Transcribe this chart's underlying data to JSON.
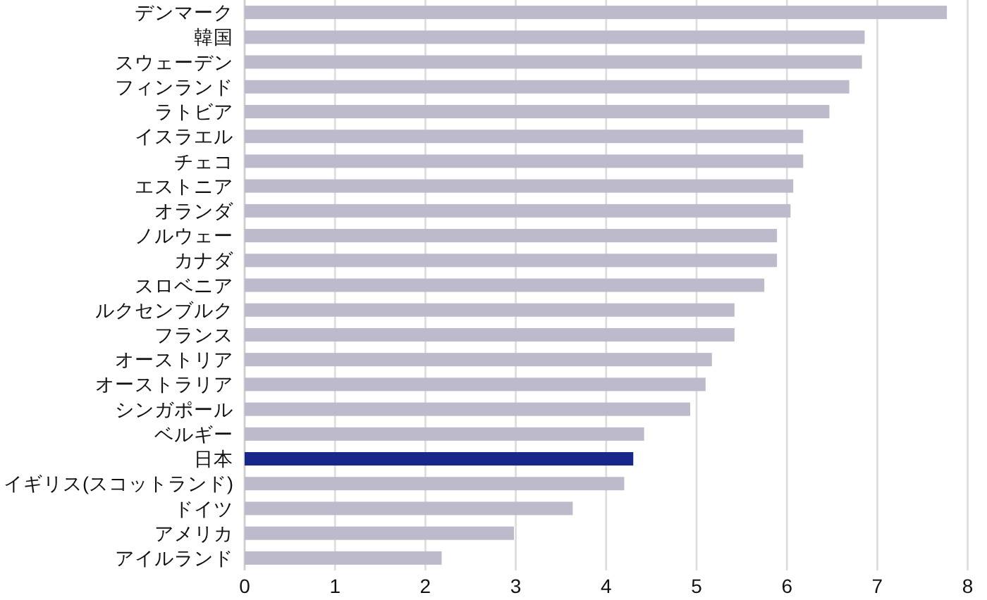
{
  "chart_data": {
    "type": "bar",
    "orientation": "horizontal",
    "categories": [
      "デンマーク",
      "韓国",
      "スウェーデン",
      "フィンランド",
      "ラトビア",
      "イスラエル",
      "チェコ",
      "エストニア",
      "オランダ",
      "ノルウェー",
      "カナダ",
      "スロベニア",
      "ルクセンブルク",
      "フランス",
      "オーストリア",
      "オーストラリア",
      "シンガポール",
      "ベルギー",
      "日本",
      "イギリス(スコットランド)",
      "ドイツ",
      "アメリカ",
      "アイルランド"
    ],
    "values": [
      7.77,
      6.86,
      6.83,
      6.69,
      6.47,
      6.18,
      6.18,
      6.07,
      6.04,
      5.89,
      5.89,
      5.75,
      5.42,
      5.42,
      5.17,
      5.1,
      4.93,
      4.42,
      4.3,
      4.2,
      3.63,
      2.98,
      2.18
    ],
    "colors": [
      "#bdbbcb",
      "#bdbbcb",
      "#bdbbcb",
      "#bdbbcb",
      "#bdbbcb",
      "#bdbbcb",
      "#bdbbcb",
      "#bdbbcb",
      "#bdbbcb",
      "#bdbbcb",
      "#bdbbcb",
      "#bdbbcb",
      "#bdbbcb",
      "#bdbbcb",
      "#bdbbcb",
      "#bdbbcb",
      "#bdbbcb",
      "#bdbbcb",
      "#17288a",
      "#bdbbcb",
      "#bdbbcb",
      "#bdbbcb",
      "#bdbbcb"
    ],
    "xlim": [
      0,
      8
    ],
    "xticks": [
      0,
      1,
      2,
      3,
      4,
      5,
      6,
      7,
      8
    ],
    "grid": "x"
  }
}
